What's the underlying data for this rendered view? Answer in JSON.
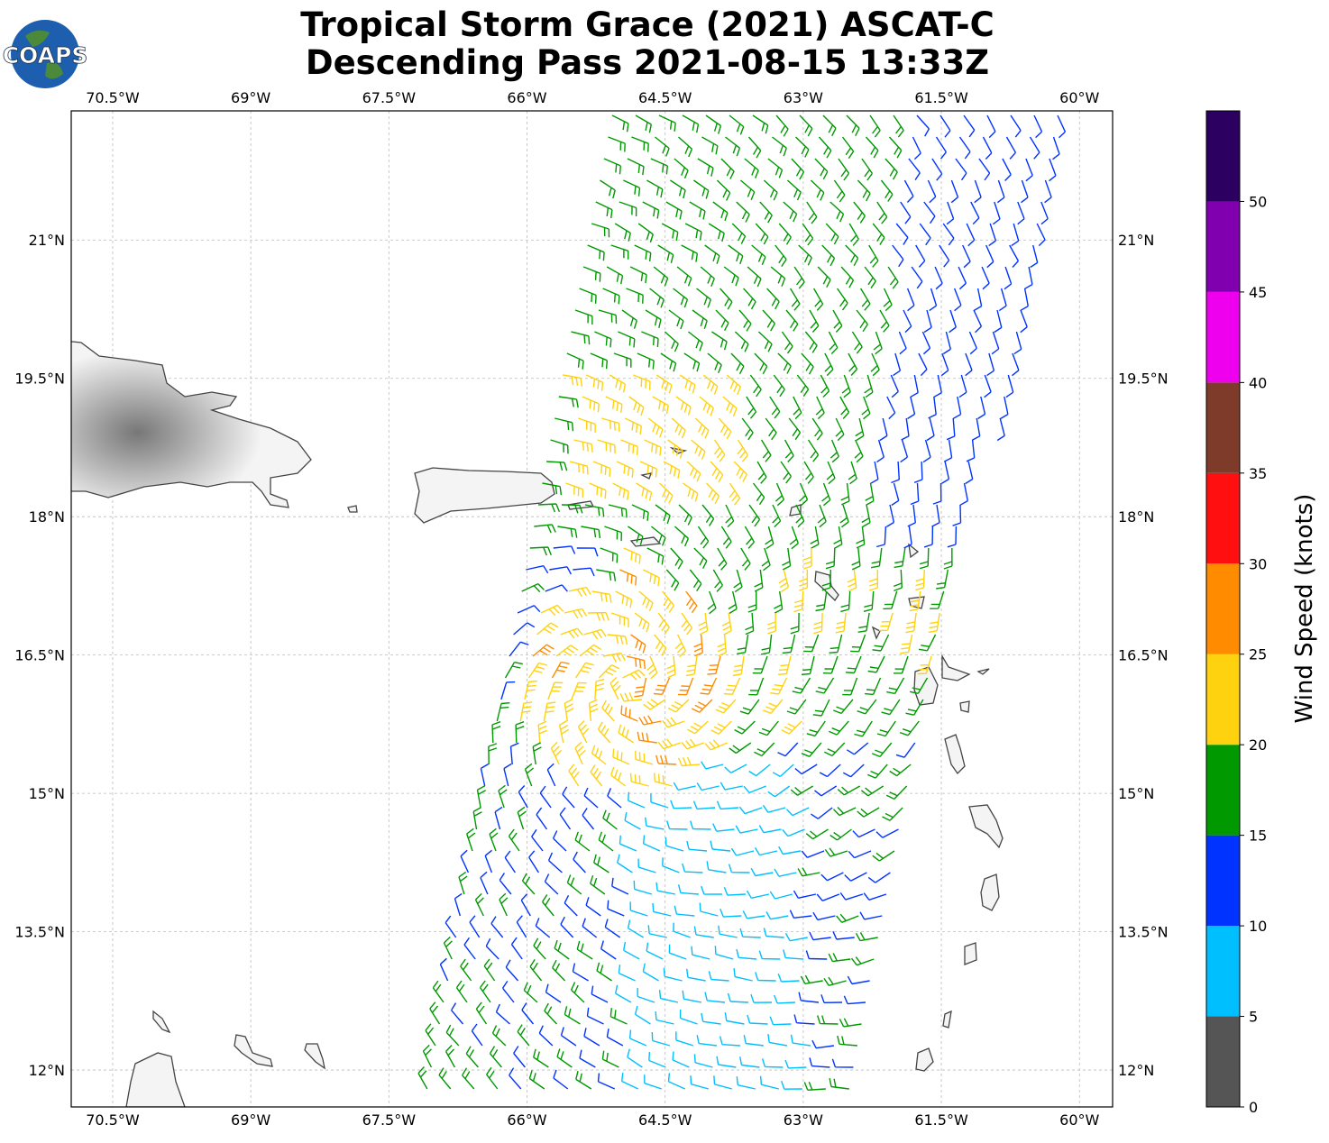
{
  "logo": "COAPS",
  "chart_data": {
    "type": "map",
    "title": "Tropical Storm Grace (2021) ASCAT-C",
    "subtitle": "Descending Pass 2021-08-15 13:33Z",
    "xlim": [
      -70.95,
      -59.64
    ],
    "ylim": [
      11.6,
      22.4
    ],
    "xticks": [
      {
        "value": -70.5,
        "label": "70.5°W"
      },
      {
        "value": -69,
        "label": "69°W"
      },
      {
        "value": -67.5,
        "label": "67.5°W"
      },
      {
        "value": -66,
        "label": "66°W"
      },
      {
        "value": -64.5,
        "label": "64.5°W"
      },
      {
        "value": -63,
        "label": "63°W"
      },
      {
        "value": -61.5,
        "label": "61.5°W"
      },
      {
        "value": -60,
        "label": "60°W"
      }
    ],
    "yticks": [
      {
        "value": 12,
        "label": "12°N"
      },
      {
        "value": 13.5,
        "label": "13.5°N"
      },
      {
        "value": 15,
        "label": "15°N"
      },
      {
        "value": 16.5,
        "label": "16.5°N"
      },
      {
        "value": 18,
        "label": "18°N"
      },
      {
        "value": 19.5,
        "label": "19.5°N"
      },
      {
        "value": 21,
        "label": "21°N"
      }
    ],
    "grid": true,
    "colorbar": {
      "label": "Wind Speed (knots)",
      "lim": [
        0,
        55
      ],
      "bounds": [
        0,
        5,
        10,
        15,
        20,
        25,
        30,
        35,
        40,
        45,
        50,
        55
      ],
      "colors": [
        "#555555",
        "#00bfff",
        "#0033ff",
        "#009900",
        "#ffd20f",
        "#ff8c00",
        "#ff0f0f",
        "#7f3b2a",
        "#ee00ee",
        "#8000b0",
        "#2c0060"
      ],
      "ticks": [
        0,
        5,
        10,
        15,
        20,
        25,
        30,
        35,
        40,
        45,
        50
      ]
    }
  }
}
